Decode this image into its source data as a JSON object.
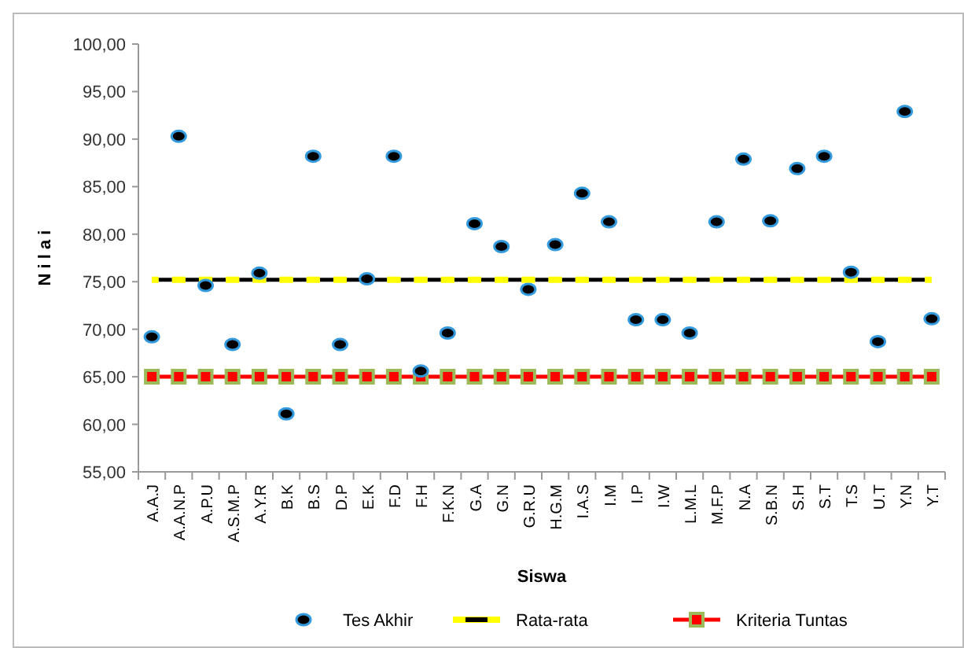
{
  "chart_data": {
    "type": "scatter",
    "xlabel": "Siswa",
    "ylabel": "N i l a i",
    "categories": [
      "A.A.J",
      "A.A.N.P",
      "A.P.U",
      "A.S.M.P",
      "A.Y.R",
      "B.K",
      "B.S",
      "D.P",
      "E.K",
      "F.D",
      "F.H",
      "F.K.N",
      "G.A",
      "G.N",
      "G.R.U",
      "H.G.M",
      "I.A.S",
      "I.M",
      "I.P",
      "I.W",
      "L.M.L",
      "M.F.P",
      "N.A",
      "S.B.N",
      "S.H",
      "S.T",
      "T.S",
      "U.T",
      "Y.N",
      "Y.T"
    ],
    "series": [
      {
        "name": "Tes Akhir",
        "marker": "circle",
        "color": "#000000",
        "values": [
          69.2,
          90.3,
          74.6,
          68.4,
          75.9,
          61.1,
          88.2,
          68.4,
          75.3,
          88.2,
          65.6,
          69.6,
          81.1,
          78.7,
          74.2,
          78.9,
          84.3,
          81.3,
          71.0,
          71.0,
          69.6,
          81.3,
          87.9,
          81.4,
          86.9,
          88.2,
          76.0,
          68.7,
          92.9,
          71.1
        ]
      },
      {
        "name": "Rata-rata",
        "type": "line",
        "marker": "none",
        "line_style": "dashed",
        "color": "#ffff00",
        "values": [
          75.2,
          75.2,
          75.2,
          75.2,
          75.2,
          75.2,
          75.2,
          75.2,
          75.2,
          75.2,
          75.2,
          75.2,
          75.2,
          75.2,
          75.2,
          75.2,
          75.2,
          75.2,
          75.2,
          75.2,
          75.2,
          75.2,
          75.2,
          75.2,
          75.2,
          75.2,
          75.2,
          75.2,
          75.2,
          75.2
        ]
      },
      {
        "name": "Kriteria Tuntas",
        "type": "line",
        "marker": "square",
        "line_style": "solid",
        "color": "#ff0000",
        "values": [
          65,
          65,
          65,
          65,
          65,
          65,
          65,
          65,
          65,
          65,
          65,
          65,
          65,
          65,
          65,
          65,
          65,
          65,
          65,
          65,
          65,
          65,
          65,
          65,
          65,
          65,
          65,
          65,
          65,
          65
        ]
      }
    ],
    "ylim": [
      55,
      100
    ],
    "yticks": [
      {
        "value": 55,
        "label": "55,00"
      },
      {
        "value": 60,
        "label": "60,00"
      },
      {
        "value": 65,
        "label": "65,00"
      },
      {
        "value": 70,
        "label": "70,00"
      },
      {
        "value": 75,
        "label": "75,00"
      },
      {
        "value": 80,
        "label": "80,00"
      },
      {
        "value": 85,
        "label": "85,00"
      },
      {
        "value": 90,
        "label": "90,00"
      },
      {
        "value": 95,
        "label": "95,00"
      },
      {
        "value": 100,
        "label": "100,00"
      }
    ],
    "grid": false,
    "legend": "bottom"
  }
}
